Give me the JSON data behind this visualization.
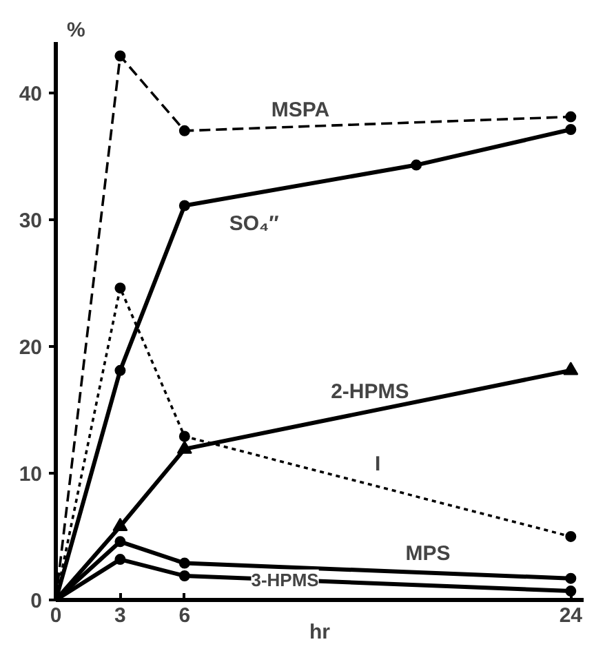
{
  "chart_data": {
    "type": "line",
    "xlabel": "hr",
    "ylabel": "%",
    "xlim": [
      0,
      24.6
    ],
    "ylim": [
      0,
      44
    ],
    "xticks": [
      0,
      3,
      6,
      24
    ],
    "yticks": [
      0,
      10,
      20,
      30,
      40
    ],
    "grid": false,
    "series": [
      {
        "name": "MSPA",
        "color": "#000000",
        "marker": "circle",
        "line_style": "dashed",
        "x": [
          0,
          3,
          6,
          24
        ],
        "values": [
          0,
          42.9,
          37.0,
          38.1
        ]
      },
      {
        "name": "SO₄″",
        "color": "#000000",
        "marker": "circle",
        "line_style": "solid",
        "x": [
          0,
          3,
          6,
          16.8,
          24
        ],
        "values": [
          0,
          18.1,
          31.1,
          34.3,
          37.1
        ]
      },
      {
        "name": "2-HPMS",
        "color": "#000000",
        "marker": "triangle",
        "line_style": "solid",
        "x": [
          0,
          3,
          6,
          24
        ],
        "values": [
          0,
          5.8,
          11.9,
          18.1
        ]
      },
      {
        "name": "I",
        "color": "#000000",
        "marker": "circle",
        "line_style": "dotted",
        "x": [
          0,
          3,
          6,
          24
        ],
        "values": [
          0,
          24.6,
          12.9,
          5.0
        ]
      },
      {
        "name": "MPS",
        "color": "#000000",
        "marker": "circle",
        "line_style": "solid",
        "x": [
          0,
          3,
          6,
          24
        ],
        "values": [
          0,
          4.6,
          2.9,
          1.7
        ]
      },
      {
        "name": "3-HPMS",
        "color": "#000000",
        "marker": "circle",
        "line_style": "solid",
        "x": [
          0,
          3,
          6,
          24
        ],
        "values": [
          0,
          3.2,
          1.9,
          0.7
        ]
      }
    ]
  }
}
